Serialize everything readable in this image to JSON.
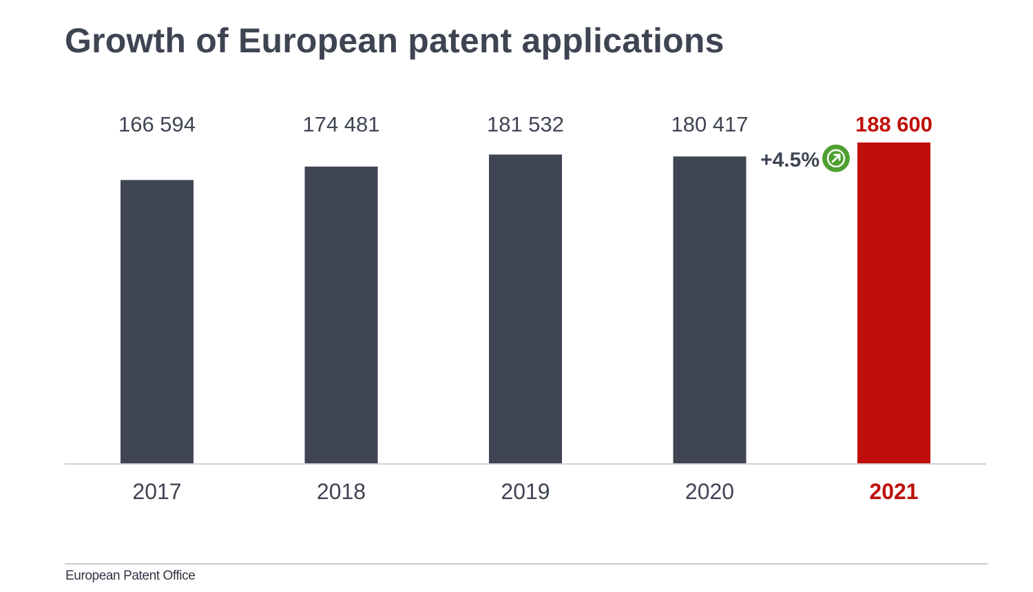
{
  "chart_data": {
    "type": "bar",
    "title": "Growth of European patent applications",
    "categories": [
      "2017",
      "2018",
      "2019",
      "2020",
      "2021"
    ],
    "values": [
      166594,
      174481,
      181532,
      180417,
      188600
    ],
    "value_labels": [
      "166 594",
      "174 481",
      "181 532",
      "180 417",
      "188 600"
    ],
    "highlight_index": 4,
    "xlabel": "",
    "ylabel": "",
    "ylim": [
      0,
      188600
    ],
    "grid": false,
    "annotation": {
      "text": "+4.5%",
      "icon": "arrow-up-right-icon"
    },
    "source": "European Patent Office"
  },
  "colors": {
    "bar": "#3f4553",
    "highlight": "#c00f0a",
    "text": "#3e4452",
    "growth_icon": "#4ea02f",
    "axis": "#cfcfd2"
  }
}
